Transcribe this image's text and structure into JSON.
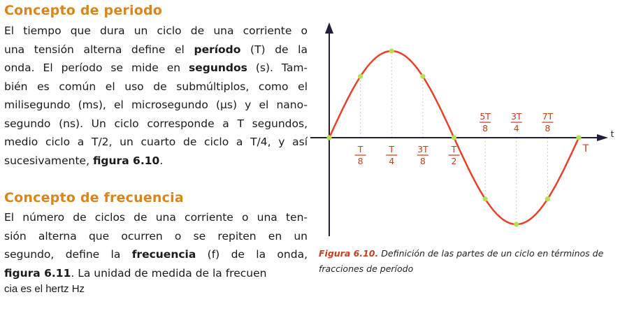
{
  "section_period": {
    "title": "Concepto de periodo",
    "lines": [
      [
        "El tiempo que dura un ciclo de una corriente o"
      ],
      [
        "una tensión alterna define el ",
        {
          "b": "período"
        },
        " (T) de la"
      ],
      [
        "onda. El período se mide en ",
        {
          "b": "segundos"
        },
        " (s). Tam-"
      ],
      [
        "bién es común el uso de submúltiplos, como el"
      ],
      [
        "milisegundo (ms), el microsegundo (µs) y el nano-"
      ],
      [
        "segundo (ns). Un ciclo corresponde a T segundos,"
      ],
      [
        "medio ciclo a T/2, un cuarto de ciclo a T/4, y así"
      ],
      [
        "sucesivamente, ",
        {
          "b": "figura 6.10"
        },
        "."
      ]
    ]
  },
  "section_frequency": {
    "title": "Concepto de frecuencia",
    "lines": [
      [
        "El número de ciclos de una corriente o una ten-"
      ],
      [
        "sión alterna que ocurren o se repiten en un"
      ],
      [
        "segundo, define la ",
        {
          "b": "frecuencia"
        },
        " (f) de la onda,"
      ],
      [
        {
          "b": "figura 6.11"
        },
        ". La unidad de medida de la frecuen"
      ]
    ],
    "continuation": "cia es el hertz Hz"
  },
  "figure": {
    "axis_label": "t",
    "period_label": "T",
    "fractions_below": [
      {
        "num": "T",
        "den": "8",
        "x": 0.125
      },
      {
        "num": "T",
        "den": "4",
        "x": 0.25
      },
      {
        "num": "3T",
        "den": "8",
        "x": 0.375
      },
      {
        "num": "T",
        "den": "2",
        "x": 0.5
      }
    ],
    "fractions_above": [
      {
        "num": "5T",
        "den": "8",
        "x": 0.625
      },
      {
        "num": "3T",
        "den": "4",
        "x": 0.75
      },
      {
        "num": "7T",
        "den": "8",
        "x": 0.875
      }
    ],
    "sample_points": [
      0,
      0.125,
      0.25,
      0.375,
      0.5,
      0.625,
      0.75,
      0.875,
      1
    ],
    "curve_color": "#e8412b",
    "point_color": "#b8e04a",
    "fraction_color": "#c5401e",
    "caption_label": "Figura 6.10.",
    "caption_text": " Definición de las partes de un ciclo en términos de fracciones de período"
  }
}
